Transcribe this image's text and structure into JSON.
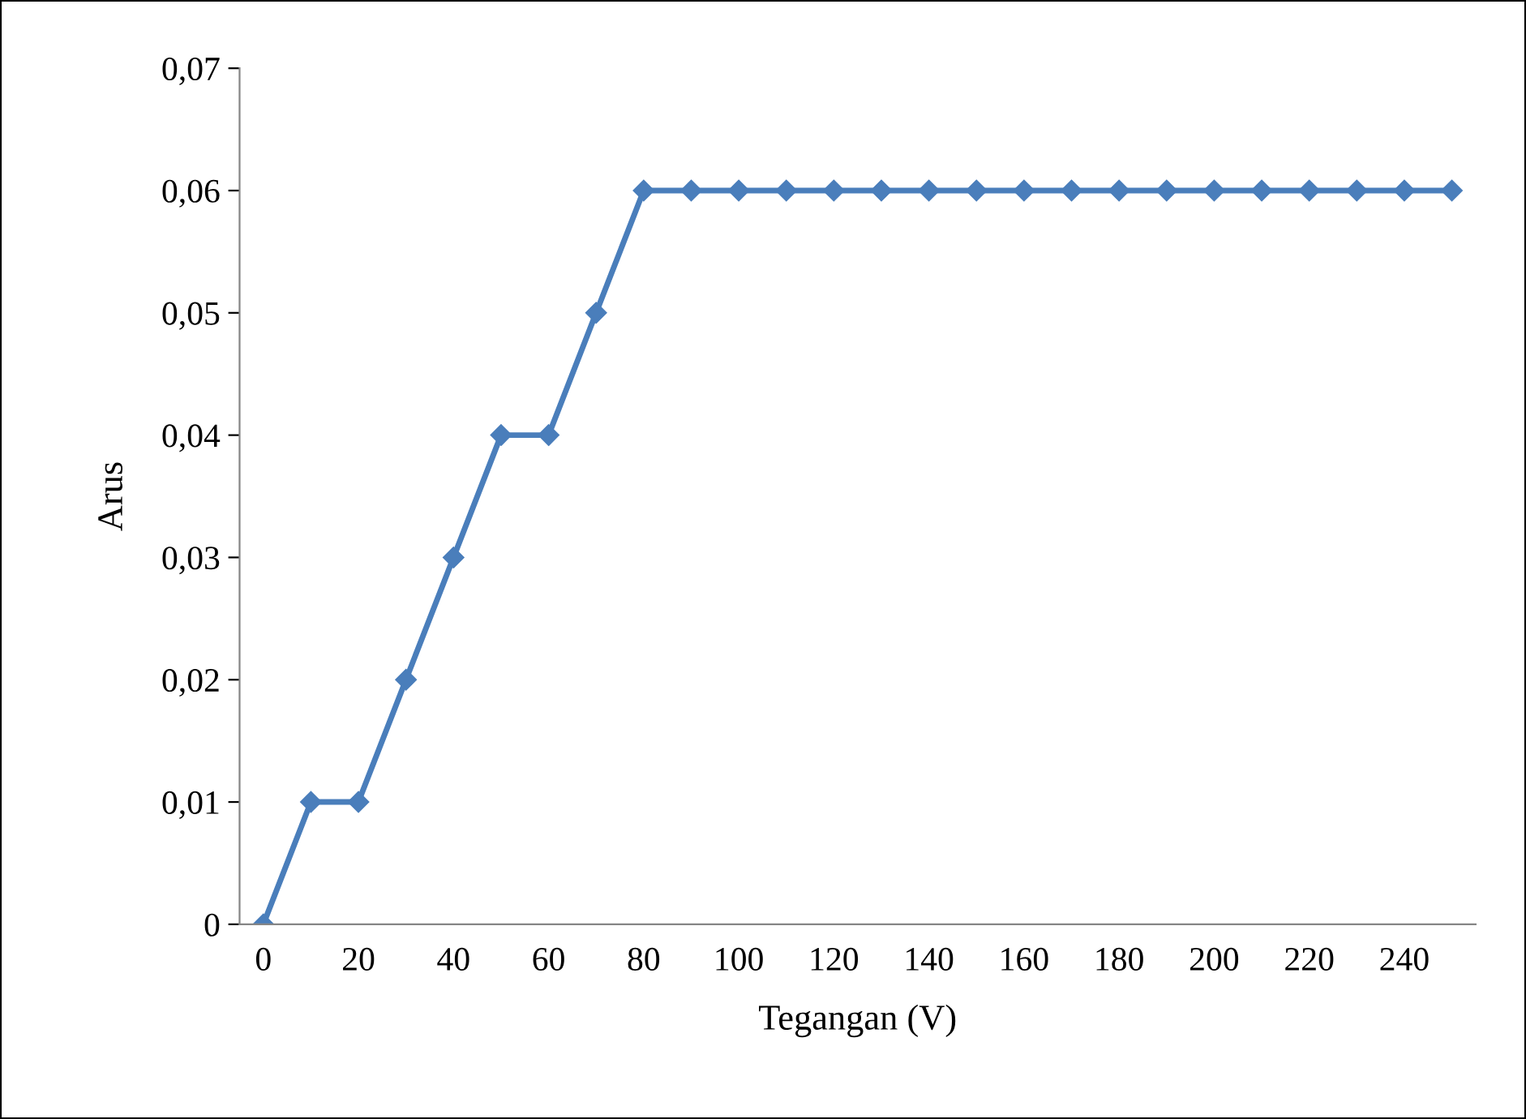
{
  "chart_data": {
    "type": "line",
    "xlabel": "Tegangan (V)",
    "ylabel": "Arus",
    "categories": [
      "0",
      null,
      "20",
      null,
      "40",
      null,
      "60",
      null,
      "80",
      null,
      "100",
      null,
      "120",
      null,
      "140",
      null,
      "160",
      null,
      "180",
      null,
      "200",
      null,
      "220",
      null,
      "240",
      null
    ],
    "series": [
      {
        "color": "#4a7ebb",
        "values": [
          0,
          0.01,
          0.01,
          0.02,
          0.03,
          0.04,
          0.04,
          0.05,
          0.06,
          0.06,
          0.06,
          0.06,
          0.06,
          0.06,
          0.06,
          0.06,
          0.06,
          0.06,
          0.06,
          0.06,
          0.06,
          0.06,
          0.06,
          0.06,
          0.06,
          0.06
        ]
      }
    ],
    "ylim": [
      0,
      0.07
    ],
    "yticks": [
      {
        "value": 0,
        "label": "0"
      },
      {
        "value": 0.01,
        "label": "0,01"
      },
      {
        "value": 0.02,
        "label": "0,02"
      },
      {
        "value": 0.03,
        "label": "0,03"
      },
      {
        "value": 0.04,
        "label": "0,04"
      },
      {
        "value": 0.05,
        "label": "0,05"
      },
      {
        "value": 0.06,
        "label": "0,06"
      },
      {
        "value": 0.07,
        "label": "0,07"
      }
    ],
    "marker": "diamond",
    "line_style": "solid"
  }
}
